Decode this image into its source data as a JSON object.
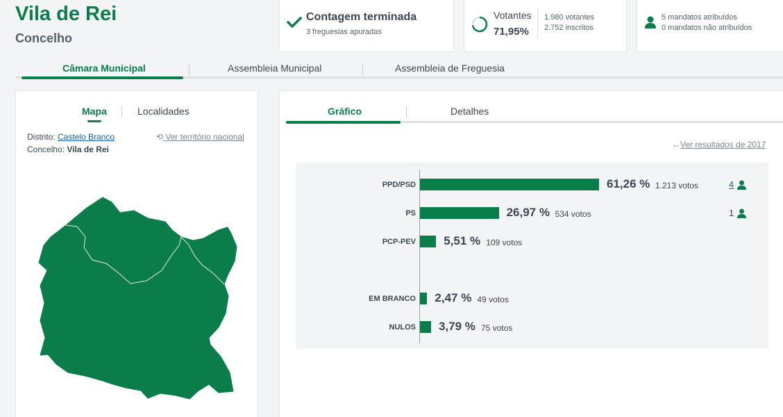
{
  "header": {
    "title": "Vila de Rei",
    "subtitle": "Concelho"
  },
  "summary": {
    "status_title": "Contagem terminada",
    "status_sub": "3 freguesias apuradas",
    "voters_label": "Votantes",
    "voters_pct": "71,95%",
    "voters_count": "1.980 votantes",
    "registered_count": "2.752 inscritos",
    "mandates_assigned": "5 mandatos atribuídos",
    "mandates_unassigned": "0 mandatos não atribuídos",
    "turnout_fraction": 0.7195
  },
  "tabs": [
    "Câmara Municipal",
    "Assembleia Municipal",
    "Assembleia de Freguesia"
  ],
  "left": {
    "tabs": [
      "Mapa",
      "Localidades"
    ],
    "district_label": "Distrito:",
    "district_value": "Castelo Branco",
    "council_label": "Concelho:",
    "council_value": "Vila de Rei",
    "national_link": "Ver território nacional"
  },
  "right": {
    "tabs": [
      "Gráfico",
      "Detalhes"
    ],
    "prev_results_link": "Ver resultados de 2017"
  },
  "colors": {
    "accent": "#0a7d4a",
    "link": "#1a5fb4"
  },
  "chart_data": {
    "type": "bar",
    "categories": [
      "PPD/PSD",
      "PS",
      "PCP-PEV",
      "EM BRANCO",
      "NULOS"
    ],
    "values": [
      61.26,
      26.97,
      5.51,
      2.47,
      3.79
    ],
    "value_labels": [
      "61,26 %",
      "26,97 %",
      "5,51 %",
      "2,47 %",
      "3,79 %"
    ],
    "votes": [
      "1.213 votos",
      "534 votos",
      "109 votos",
      "49 votos",
      "75 votos"
    ],
    "mandates": [
      "4",
      "1",
      "",
      "",
      ""
    ]
  }
}
